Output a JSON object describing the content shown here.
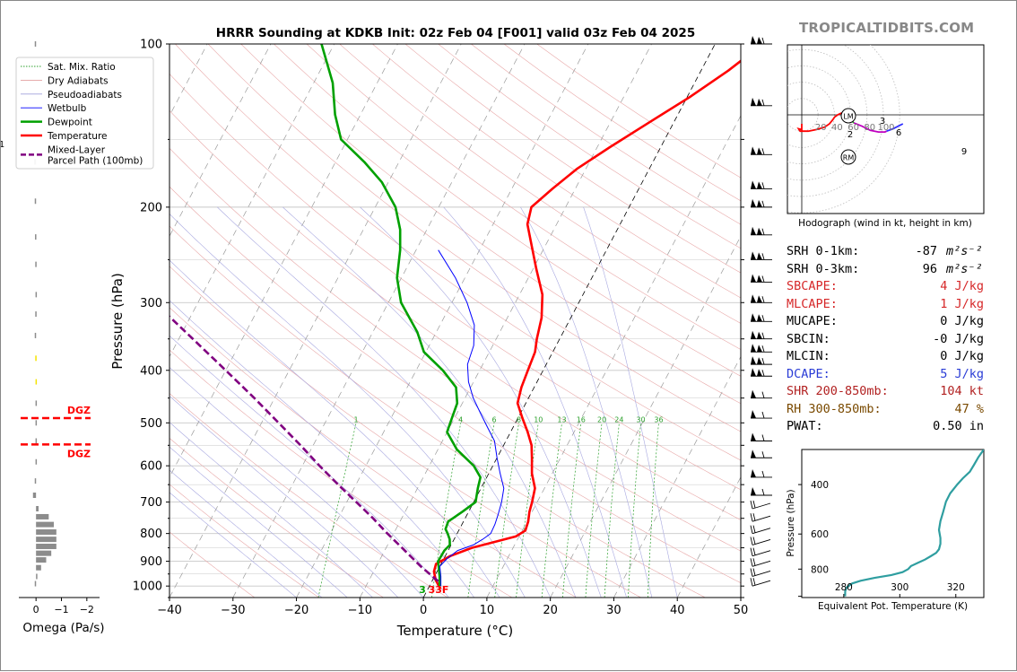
{
  "header": {
    "title": "HRRR Sounding at KDKB Init: 02z Feb 04 [F001] valid 03z Feb 04 2025",
    "brand": "TROPICALTIDBITS.COM"
  },
  "chart_data": [
    {
      "type": "line",
      "name": "skew-t",
      "xlabel": "Temperature (°C)",
      "ylabel": "Pressure (hPa)",
      "xlim": [
        -40,
        50
      ],
      "ylim": [
        1050,
        100
      ],
      "log_y": true,
      "skew_deg_per_log_decade": 45,
      "x_ticks": [
        "−40",
        "−30",
        "−20",
        "−10",
        "0",
        "10",
        "20",
        "30",
        "40",
        "50"
      ],
      "y_ticks": [
        "100",
        "200",
        "300",
        "400",
        "500",
        "600",
        "700",
        "800",
        "900",
        "1000"
      ],
      "legend": {
        "placement": "top-left",
        "entries": [
          {
            "label": "Sat. Mix. Ratio",
            "color": "#2ca02c",
            "style": "dotted"
          },
          {
            "label": "Dry Adiabats",
            "color": "#e3a0a0",
            "style": "solid"
          },
          {
            "label": "Pseudoadiabats",
            "color": "#a0a0dc",
            "style": "solid"
          },
          {
            "label": "Wetbulb",
            "color": "#0000ff",
            "style": "solid"
          },
          {
            "label": "Dewpoint",
            "color": "#00a000",
            "style": "solid"
          },
          {
            "label": "Temperature",
            "color": "#ff0000",
            "style": "solid"
          },
          {
            "label": "Mixed-Layer\nParcel Path (100mb)",
            "color": "#800080",
            "style": "dashed"
          }
        ]
      },
      "series": [
        {
          "name": "Temperature",
          "color": "#ff0000",
          "points": [
            [
              1013,
              2.0
            ],
            [
              975,
              0.5
            ],
            [
              940,
              -0.5
            ],
            [
              910,
              -0.8
            ],
            [
              880,
              0.8
            ],
            [
              850,
              3.5
            ],
            [
              830,
              6.5
            ],
            [
              810,
              9.5
            ],
            [
              790,
              10.5
            ],
            [
              760,
              10.2
            ],
            [
              730,
              9.6
            ],
            [
              700,
              9.2
            ],
            [
              660,
              8.5
            ],
            [
              620,
              6.8
            ],
            [
              580,
              5.5
            ],
            [
              550,
              4.4
            ],
            [
              520,
              2.7
            ],
            [
              490,
              0.7
            ],
            [
              460,
              -1.3
            ],
            [
              430,
              -2.0
            ],
            [
              400,
              -2.4
            ],
            [
              370,
              -2.8
            ],
            [
              350,
              -3.6
            ],
            [
              320,
              -4.6
            ],
            [
              290,
              -6.4
            ],
            [
              260,
              -9.5
            ],
            [
              230,
              -12.8
            ],
            [
              215,
              -14.6
            ],
            [
              200,
              -15.4
            ],
            [
              185,
              -13.6
            ],
            [
              170,
              -11.4
            ],
            [
              155,
              -8.0
            ],
            [
              140,
              -4.0
            ],
            [
              125,
              0.5
            ],
            [
              112,
              4.3
            ],
            [
              100,
              7.5
            ]
          ]
        },
        {
          "name": "Dewpoint",
          "color": "#00a000",
          "points": [
            [
              1000,
              1.6
            ],
            [
              960,
              0.8
            ],
            [
              900,
              -0.7
            ],
            [
              860,
              -0.6
            ],
            [
              840,
              -0.2
            ],
            [
              820,
              -0.7
            ],
            [
              800,
              -1.5
            ],
            [
              785,
              -2.2
            ],
            [
              760,
              -2.4
            ],
            [
              730,
              -1.0
            ],
            [
              700,
              0.3
            ],
            [
              660,
              -0.5
            ],
            [
              630,
              -1.0
            ],
            [
              600,
              -3.0
            ],
            [
              560,
              -7.0
            ],
            [
              520,
              -10.0
            ],
            [
              490,
              -10.4
            ],
            [
              460,
              -10.8
            ],
            [
              430,
              -12.3
            ],
            [
              400,
              -15.8
            ],
            [
              370,
              -20.3
            ],
            [
              340,
              -23.0
            ],
            [
              300,
              -28.0
            ],
            [
              270,
              -30.7
            ],
            [
              240,
              -32.5
            ],
            [
              220,
              -34.2
            ],
            [
              200,
              -36.8
            ],
            [
              180,
              -41.0
            ],
            [
              165,
              -45.5
            ],
            [
              150,
              -51.0
            ],
            [
              135,
              -54.0
            ],
            [
              118,
              -57.0
            ],
            [
              100,
              -62.0
            ]
          ]
        },
        {
          "name": "Wetbulb",
          "color": "#0000ff",
          "points": [
            [
              1000,
              1.8
            ],
            [
              960,
              1.0
            ],
            [
              920,
              0.0
            ],
            [
              890,
              0.5
            ],
            [
              860,
              1.5
            ],
            [
              840,
              3.5
            ],
            [
              820,
              4.5
            ],
            [
              800,
              5.3
            ],
            [
              770,
              5.2
            ],
            [
              740,
              4.9
            ],
            [
              700,
              4.4
            ],
            [
              660,
              3.6
            ],
            [
              620,
              1.8
            ],
            [
              580,
              0.0
            ],
            [
              540,
              -1.8
            ],
            [
              510,
              -4.0
            ],
            [
              480,
              -6.3
            ],
            [
              450,
              -8.7
            ],
            [
              420,
              -10.8
            ],
            [
              390,
              -12.4
            ],
            [
              360,
              -13.0
            ],
            [
              330,
              -14.6
            ],
            [
              300,
              -17.6
            ],
            [
              270,
              -21.5
            ],
            [
              240,
              -26.5
            ]
          ]
        },
        {
          "name": "Mixed-Layer Parcel Path (100mb)",
          "color": "#800080",
          "dashed": true,
          "points": [
            [
              980,
              1.0
            ],
            [
              920,
              -3.0
            ],
            [
              850,
              -7.5
            ],
            [
              800,
              -11.0
            ],
            [
              750,
              -14.5
            ],
            [
              700,
              -18.5
            ],
            [
              650,
              -22.8
            ],
            [
              600,
              -27.3
            ],
            [
              550,
              -32.0
            ],
            [
              500,
              -37.3
            ],
            [
              450,
              -43.2
            ],
            [
              400,
              -50.0
            ],
            [
              350,
              -57.8
            ],
            [
              300,
              -66.8
            ],
            [
              280,
              -70.5
            ]
          ]
        }
      ],
      "mixing_ratio_labels": [
        "1",
        "4",
        "6",
        "8",
        "10",
        "13",
        "16",
        "20",
        "24",
        "30",
        "36"
      ],
      "surface_labels": [
        {
          "text": "3",
          "color": "#00a000"
        },
        {
          "text": "33F",
          "color": "#ff0000"
        }
      ],
      "wind_barb_levels_hpa": [
        100,
        130,
        160,
        185,
        200,
        225,
        250,
        275,
        300,
        325,
        350,
        370,
        390,
        410,
        450,
        490,
        540,
        580,
        630,
        680,
        720,
        760,
        800,
        840,
        880,
        920,
        960,
        1000
      ]
    },
    {
      "type": "bar",
      "name": "omega-profile",
      "xlabel": "Omega (Pa/s)",
      "x_ticks": [
        "0",
        "−1",
        "−2"
      ],
      "xlim": [
        0.5,
        -2.5
      ],
      "dgz_label": "DGZ",
      "dgz_hpa": [
        490,
        548
      ],
      "values": [
        [
          100,
          0.05
        ],
        [
          165,
          0.07
        ],
        [
          195,
          0.05
        ],
        [
          227,
          0.04
        ],
        [
          255,
          0.03
        ],
        [
          290,
          0.02
        ],
        [
          315,
          0.03
        ],
        [
          345,
          0.05
        ],
        [
          380,
          0.03
        ],
        [
          420,
          0.02
        ],
        [
          460,
          0.02
        ],
        [
          500,
          0.02
        ],
        [
          540,
          0.02
        ],
        [
          590,
          0.02
        ],
        [
          640,
          0.05
        ],
        [
          680,
          0.12
        ],
        [
          720,
          -0.1
        ],
        [
          745,
          -0.5
        ],
        [
          770,
          -0.7
        ],
        [
          795,
          -0.8
        ],
        [
          820,
          -0.8
        ],
        [
          845,
          -0.8
        ],
        [
          870,
          -0.6
        ],
        [
          895,
          -0.4
        ],
        [
          925,
          -0.2
        ],
        [
          960,
          -0.05
        ],
        [
          990,
          0.05
        ]
      ]
    },
    {
      "type": "line",
      "name": "hodograph",
      "xlabel": "Hodograph (wind in kt, height in km)",
      "ring_labels": [
        "20",
        "40",
        "60",
        "80",
        "100"
      ],
      "point_labels": [
        "1",
        "2",
        "3",
        "6",
        "9"
      ],
      "storm_motion_labels": [
        "LM",
        "RM"
      ],
      "segments": [
        {
          "color": "#ff0000",
          "points": [
            [
              0,
              -11
            ],
            [
              0,
              -18
            ],
            [
              -4,
              -17
            ],
            [
              -2,
              -20
            ],
            [
              8,
              -20
            ],
            [
              18,
              -18
            ],
            [
              28,
              -15
            ],
            [
              34,
              -11
            ],
            [
              38,
              -6
            ],
            [
              40,
              -3
            ],
            [
              44,
              0
            ],
            [
              48,
              2
            ],
            [
              54,
              3
            ],
            [
              58,
              3
            ]
          ]
        },
        {
          "color": "#2ca02c",
          "points": [
            [
              58,
              3
            ],
            [
              60,
              -2
            ],
            [
              62,
              -8
            ],
            [
              64,
              -10
            ]
          ]
        },
        {
          "color": "#c000c0",
          "points": [
            [
              64,
              -10
            ],
            [
              74,
              -14
            ],
            [
              84,
              -19
            ],
            [
              94,
              -21
            ],
            [
              102,
              -21
            ],
            [
              104,
              -20
            ]
          ]
        },
        {
          "color": "#3030ff",
          "points": [
            [
              104,
              -20
            ],
            [
              112,
              -17
            ],
            [
              118,
              -14
            ],
            [
              124,
              -11
            ]
          ]
        }
      ]
    },
    {
      "type": "line",
      "name": "theta-e-profile",
      "xlabel": "Equivalent Pot. Temperature (K)",
      "ylabel": "Pressure (hPa)",
      "x_ticks": [
        "280",
        "300",
        "320"
      ],
      "y_ticks": [
        "400",
        "600",
        "800"
      ],
      "xlim": [
        265,
        330
      ],
      "ylim": [
        1010,
        300
      ],
      "color": "#2f9ea0",
      "points": [
        [
          1000,
          280.5
        ],
        [
          960,
          280.5
        ],
        [
          930,
          281.0
        ],
        [
          900,
          283.0
        ],
        [
          880,
          286.0
        ],
        [
          860,
          291.0
        ],
        [
          840,
          297.0
        ],
        [
          820,
          301.0
        ],
        [
          800,
          303.0
        ],
        [
          780,
          304.0
        ],
        [
          760,
          306.5
        ],
        [
          740,
          309.0
        ],
        [
          720,
          311.0
        ],
        [
          700,
          313.0
        ],
        [
          680,
          314.0
        ],
        [
          650,
          314.5
        ],
        [
          620,
          314.5
        ],
        [
          580,
          314.0
        ],
        [
          540,
          314.5
        ],
        [
          500,
          315.5
        ],
        [
          460,
          316.5
        ],
        [
          430,
          318.0
        ],
        [
          400,
          320.5
        ],
        [
          380,
          322.5
        ],
        [
          360,
          325.0
        ],
        [
          340,
          326.5
        ],
        [
          320,
          328.0
        ],
        [
          300,
          330.0
        ]
      ]
    }
  ],
  "indices": [
    {
      "label": "SRH 0-1km:",
      "value": "-87",
      "unit": "m²s⁻²",
      "color": "#000000"
    },
    {
      "label": "SRH 0-3km:",
      "value": "96",
      "unit": "m²s⁻²",
      "color": "#000000"
    },
    {
      "label": "SBCAPE:",
      "value": "4 J/kg",
      "unit": "",
      "color": "#d62728"
    },
    {
      "label": "MLCAPE:",
      "value": "1 J/kg",
      "unit": "",
      "color": "#d62728"
    },
    {
      "label": "MUCAPE:",
      "value": "0 J/kg",
      "unit": "",
      "color": "#000000"
    },
    {
      "label": "SBCIN:",
      "value": "-0 J/kg",
      "unit": "",
      "color": "#000000"
    },
    {
      "label": "MLCIN:",
      "value": "0 J/kg",
      "unit": "",
      "color": "#000000"
    },
    {
      "label": "DCAPE:",
      "value": "5 J/kg",
      "unit": "",
      "color": "#2a3cd6"
    },
    {
      "label": "SHR 200-850mb:",
      "value": "104 kt",
      "unit": "",
      "color": "#b22222"
    },
    {
      "label": "RH 300-850mb:",
      "value": "47 %",
      "unit": "",
      "color": "#7a4a00"
    },
    {
      "label": "PWAT:",
      "value": "0.50 in",
      "unit": "",
      "color": "#000000"
    }
  ]
}
